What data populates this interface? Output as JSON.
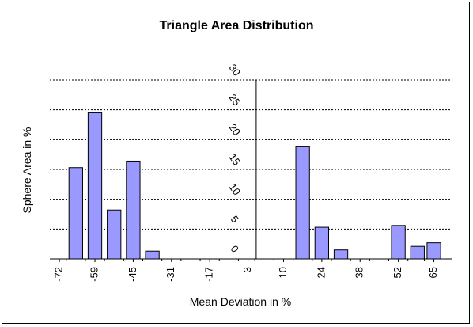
{
  "chart_data": {
    "type": "bar",
    "title": "Triangle Area Distribution",
    "xlabel": "Mean Deviation in %",
    "ylabel": "Sphere Area in %",
    "x_tick_labels": [
      "-72",
      "-59",
      "-45",
      "-31",
      "-17",
      "-3",
      "10",
      "24",
      "38",
      "52",
      "65"
    ],
    "y_tick_labels": [
      "0",
      "5",
      "10",
      "15",
      "20",
      "25",
      "30"
    ],
    "ylim": [
      0,
      30
    ],
    "x_range": [
      -75.5,
      71.5
    ],
    "grid": true,
    "bar_color": "#9999ff",
    "bar_width": 5,
    "bars": [
      {
        "x": -66,
        "y": 15.3
      },
      {
        "x": -59,
        "y": 24.5
      },
      {
        "x": -52,
        "y": 8.2
      },
      {
        "x": -45,
        "y": 16.4
      },
      {
        "x": -38,
        "y": 1.3
      },
      {
        "x": -31,
        "y": 0
      },
      {
        "x": -24,
        "y": 0
      },
      {
        "x": -17,
        "y": 0
      },
      {
        "x": -10,
        "y": 0
      },
      {
        "x": -3,
        "y": 0
      },
      {
        "x": 3,
        "y": 0
      },
      {
        "x": 10,
        "y": 0
      },
      {
        "x": 17,
        "y": 18.8
      },
      {
        "x": 24,
        "y": 5.3
      },
      {
        "x": 31,
        "y": 1.5
      },
      {
        "x": 38,
        "y": 0
      },
      {
        "x": 45,
        "y": 0
      },
      {
        "x": 52,
        "y": 5.6
      },
      {
        "x": 59,
        "y": 2.1
      },
      {
        "x": 65,
        "y": 2.7
      }
    ]
  }
}
